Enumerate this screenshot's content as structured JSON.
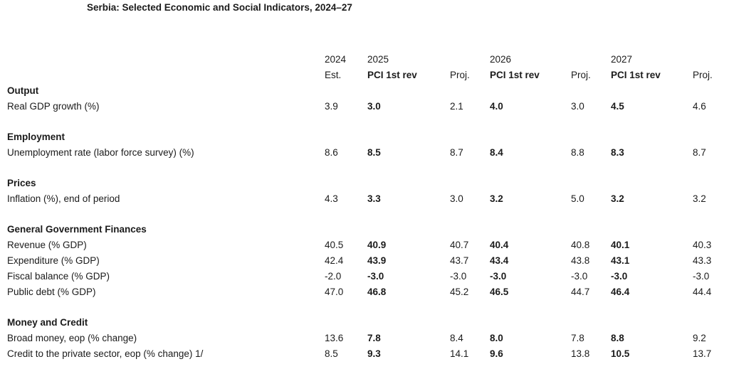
{
  "title": "Serbia: Selected Economic and Social Indicators, 2024–27",
  "table": {
    "columns": [
      {
        "year": "2024",
        "sub": "Est."
      },
      {
        "year": "2025",
        "sub": "PCI 1st rev"
      },
      {
        "year": "",
        "sub": "Proj."
      },
      {
        "year": "2026",
        "sub": "PCI 1st rev"
      },
      {
        "year": "",
        "sub": "Proj."
      },
      {
        "year": "2027",
        "sub": "PCI 1st rev"
      },
      {
        "year": "",
        "sub": "Proj."
      }
    ],
    "sections": [
      {
        "header": "Output",
        "rows": [
          {
            "label": "Real GDP growth (%)",
            "values": [
              "3.9",
              "3.0",
              "2.1",
              "4.0",
              "3.0",
              "4.5",
              "4.6"
            ]
          }
        ]
      },
      {
        "header": "Employment",
        "rows": [
          {
            "label": "Unemployment rate (labor force survey) (%)",
            "values": [
              "8.6",
              "8.5",
              "8.7",
              "8.4",
              "8.8",
              "8.3",
              "8.7"
            ]
          }
        ]
      },
      {
        "header": "Prices",
        "rows": [
          {
            "label": "Inflation (%), end of period",
            "values": [
              "4.3",
              "3.3",
              "3.0",
              "3.2",
              "5.0",
              "3.2",
              "3.2"
            ]
          }
        ]
      },
      {
        "header": "General Government Finances",
        "rows": [
          {
            "label": "Revenue (% GDP)",
            "values": [
              "40.5",
              "40.9",
              "40.7",
              "40.4",
              "40.8",
              "40.1",
              "40.3"
            ]
          },
          {
            "label": "Expenditure (% GDP)",
            "values": [
              "42.4",
              "43.9",
              "43.7",
              "43.4",
              "43.8",
              "43.1",
              "43.3"
            ]
          },
          {
            "label": "Fiscal balance (% GDP)",
            "values": [
              "-2.0",
              "-3.0",
              "-3.0",
              "-3.0",
              "-3.0",
              "-3.0",
              "-3.0"
            ]
          },
          {
            "label": "Public debt (% GDP)",
            "values": [
              "47.0",
              "46.8",
              "45.2",
              "46.5",
              "44.7",
              "46.4",
              "44.4"
            ]
          }
        ]
      },
      {
        "header": "Money and Credit",
        "rows": [
          {
            "label": "Broad money, eop (% change)",
            "values": [
              "13.6",
              "7.8",
              "8.4",
              "8.0",
              "7.8",
              "8.8",
              "9.2"
            ]
          },
          {
            "label": "Credit to the private sector, eop (% change) 1/",
            "values": [
              "8.5",
              "9.3",
              "14.1",
              "9.6",
              "13.8",
              "10.5",
              "13.7"
            ]
          }
        ]
      }
    ]
  }
}
